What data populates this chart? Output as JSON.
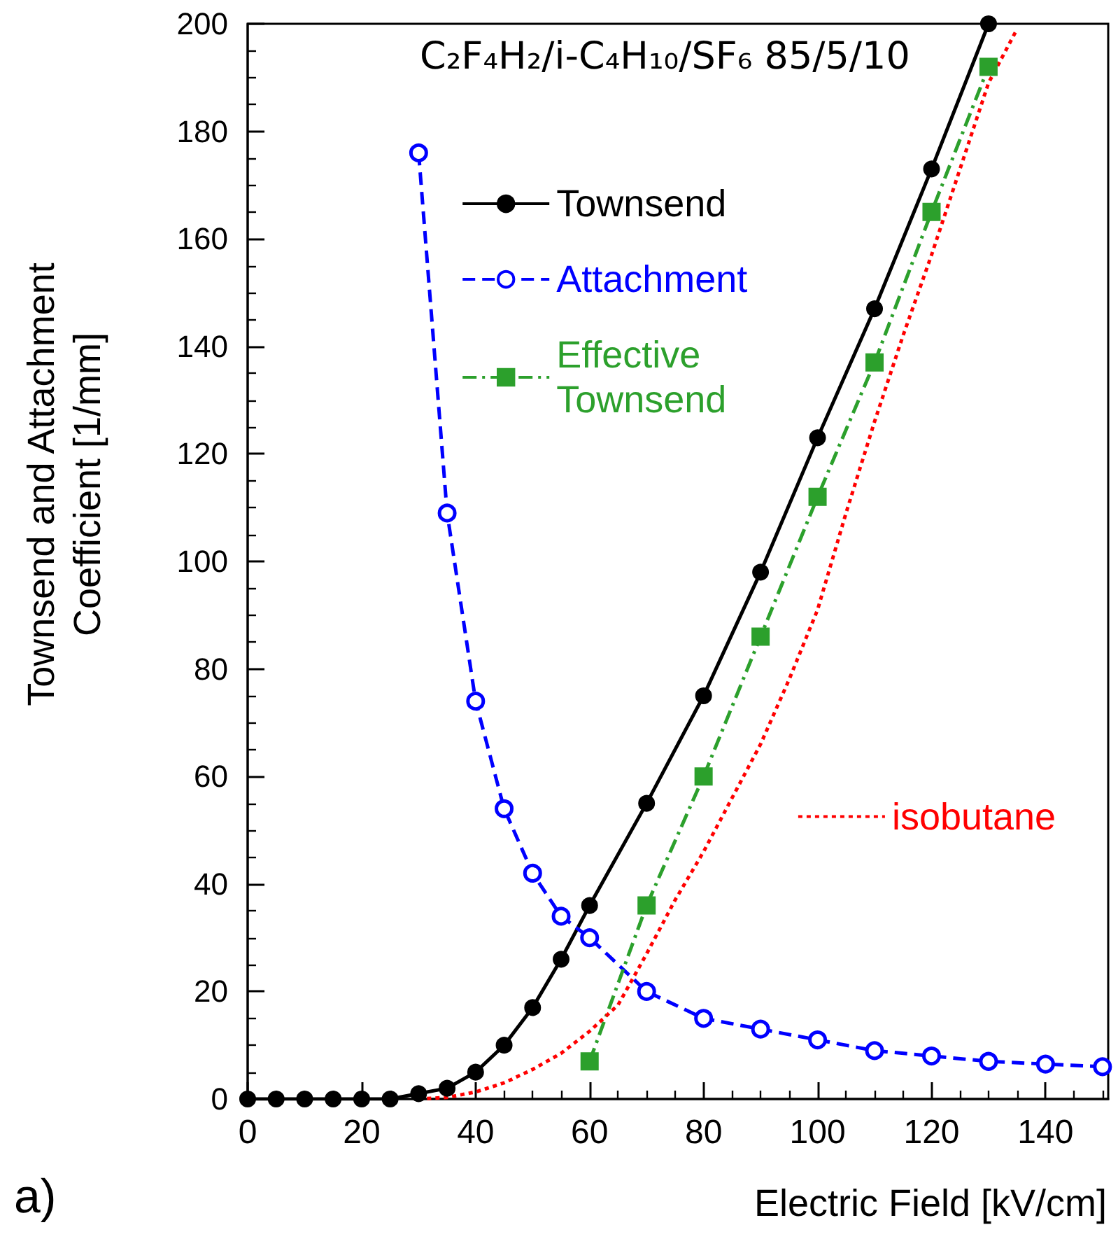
{
  "chart_data": {
    "type": "line",
    "title": "C₂F₄H₂/i-C₄H₁₀/SF₆ 85/5/10",
    "xlabel": "Electric Field [kV/cm]",
    "ylabel": "Townsend and Attachment Coefficient [1/mm]",
    "annotations": [
      "a)"
    ],
    "xlim": [
      0,
      151
    ],
    "xticks": [
      0,
      20,
      40,
      60,
      80,
      100,
      120,
      140
    ],
    "ylim": [
      0,
      200
    ],
    "yticks": [
      0,
      20,
      40,
      60,
      80,
      100,
      120,
      140,
      160,
      180,
      200
    ],
    "grid": false,
    "legend": "right",
    "series": [
      {
        "name": "Townsend",
        "color": "#000000",
        "marker": "circle",
        "line_style": "solid",
        "x": [
          0,
          5,
          10,
          15,
          20,
          25,
          30,
          35,
          40,
          45,
          50,
          55,
          60,
          70,
          80,
          90,
          100,
          110,
          120,
          130
        ],
        "values": [
          0,
          0,
          0,
          0,
          0,
          0,
          1,
          2,
          5,
          10,
          17,
          26,
          36,
          55,
          75,
          98,
          123,
          147,
          173,
          200
        ]
      },
      {
        "name": "Attachment",
        "color": "#0000ff",
        "marker": "circle",
        "line_style": "dashed",
        "x": [
          30,
          35,
          40,
          45,
          50,
          55,
          60,
          70,
          80,
          90,
          100,
          110,
          120,
          130,
          140,
          150
        ],
        "values": [
          176,
          109,
          74,
          54,
          42,
          34,
          30,
          20,
          15,
          13,
          11,
          9,
          8,
          7,
          6.5,
          6
        ]
      },
      {
        "name": "Effective Townsend",
        "color": "#2ca02c",
        "marker": "square",
        "line_style": "dashdot",
        "x": [
          60,
          70,
          80,
          90,
          100,
          110,
          120,
          130
        ],
        "values": [
          7,
          36,
          60,
          86,
          112,
          137,
          165,
          192
        ]
      },
      {
        "name": "isobutane",
        "color": "#ff0000",
        "marker": "none",
        "line_style": "dotted",
        "x": [
          30,
          35,
          40,
          45,
          50,
          55,
          60,
          65,
          70,
          75,
          80,
          85,
          90,
          95,
          100,
          105,
          110,
          115,
          120,
          125,
          130,
          135
        ],
        "values": [
          0,
          0.3,
          1.3,
          3,
          5.5,
          8.5,
          12.6,
          17.5,
          27,
          37,
          46,
          56,
          66,
          78,
          91,
          109,
          126,
          142,
          157,
          173,
          189,
          199
        ]
      }
    ]
  }
}
